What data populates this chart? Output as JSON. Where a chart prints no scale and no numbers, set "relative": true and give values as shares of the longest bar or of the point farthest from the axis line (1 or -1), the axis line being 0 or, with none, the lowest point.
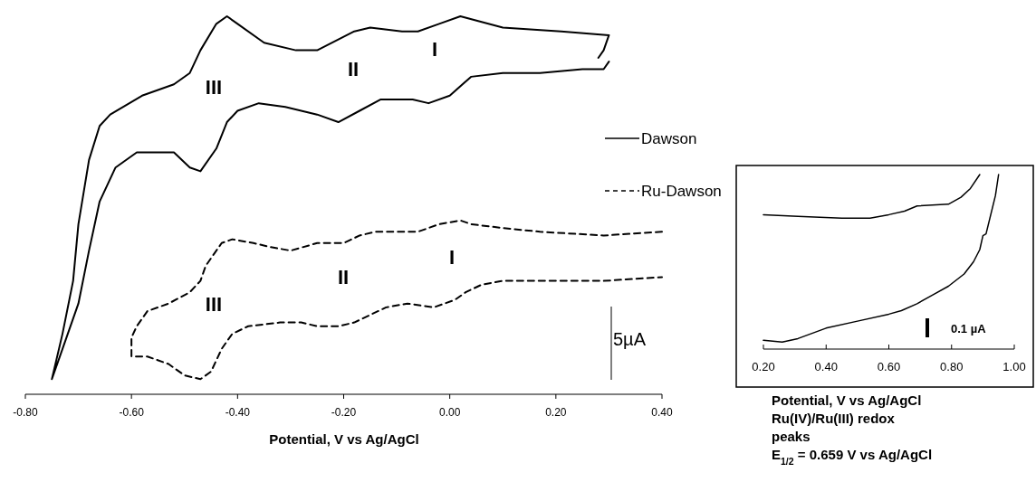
{
  "chart_data": [
    {
      "type": "line",
      "relative": true,
      "xlabel": "Potential, V vs Ag/AgCl",
      "xlim": [
        -0.8,
        0.4
      ],
      "xticks": [
        {
          "value": -0.8,
          "label": "-0.80"
        },
        {
          "value": -0.6,
          "label": "-0.60"
        },
        {
          "value": -0.4,
          "label": "-0.40"
        },
        {
          "value": -0.2,
          "label": "-0.20"
        },
        {
          "value": 0,
          "label": "0.00"
        },
        {
          "value": 0.2,
          "label": "0.20"
        },
        {
          "value": 0.4,
          "label": "0.40"
        }
      ],
      "tick_labels": "x",
      "legend": "right",
      "marker": "none",
      "series": [
        {
          "name": "Dawson",
          "color": "#000000",
          "line_style": "solid",
          "x": [
            0.28,
            0.29,
            0.3,
            0.21,
            0.1,
            0.02,
            -0.02,
            -0.06,
            -0.09,
            -0.15,
            -0.18,
            -0.25,
            -0.29,
            -0.35,
            -0.4,
            -0.42,
            -0.44,
            -0.47,
            -0.49,
            -0.52,
            -0.58,
            -0.64,
            -0.66,
            -0.68,
            -0.7,
            -0.71,
            -0.73,
            -0.75,
            -0.73,
            -0.7,
            -0.68,
            -0.66,
            -0.63,
            -0.59,
            -0.55,
            -0.52,
            -0.49,
            -0.47,
            -0.44,
            -0.42,
            -0.4,
            -0.36,
            -0.31,
            -0.25,
            -0.21,
            -0.17,
            -0.13,
            -0.07,
            -0.04,
            0.0,
            0.04,
            0.1,
            0.17,
            0.25,
            0.29,
            0.3
          ],
          "values": [
            0.89,
            0.91,
            0.95,
            0.96,
            0.97,
            1.0,
            0.98,
            0.96,
            0.96,
            0.97,
            0.96,
            0.91,
            0.91,
            0.93,
            0.98,
            1.0,
            0.98,
            0.91,
            0.85,
            0.82,
            0.79,
            0.74,
            0.71,
            0.62,
            0.45,
            0.3,
            0.16,
            0.04,
            0.12,
            0.24,
            0.38,
            0.51,
            0.6,
            0.64,
            0.64,
            0.64,
            0.6,
            0.59,
            0.65,
            0.72,
            0.75,
            0.77,
            0.76,
            0.74,
            0.72,
            0.75,
            0.78,
            0.78,
            0.77,
            0.79,
            0.84,
            0.85,
            0.85,
            0.86,
            0.86,
            0.88
          ]
        },
        {
          "name": "Ru-Dawson",
          "color": "#000000",
          "line_style": "dashed",
          "x": [
            0.4,
            0.29,
            0.17,
            0.1,
            0.04,
            0.02,
            -0.02,
            -0.06,
            -0.09,
            -0.14,
            -0.17,
            -0.2,
            -0.25,
            -0.3,
            -0.34,
            -0.37,
            -0.41,
            -0.43,
            -0.44,
            -0.46,
            -0.47,
            -0.49,
            -0.53,
            -0.57,
            -0.59,
            -0.6,
            -0.6,
            -0.57,
            -0.53,
            -0.5,
            -0.47,
            -0.45,
            -0.43,
            -0.41,
            -0.38,
            -0.32,
            -0.28,
            -0.25,
            -0.21,
            -0.18,
            -0.15,
            -0.12,
            -0.08,
            -0.03,
            0.01,
            0.03,
            0.06,
            0.1,
            0.17,
            0.29,
            0.4
          ],
          "values": [
            0.43,
            0.42,
            0.43,
            0.44,
            0.45,
            0.46,
            0.45,
            0.43,
            0.43,
            0.43,
            0.42,
            0.4,
            0.4,
            0.38,
            0.39,
            0.4,
            0.41,
            0.4,
            0.38,
            0.34,
            0.3,
            0.27,
            0.24,
            0.22,
            0.18,
            0.15,
            0.1,
            0.1,
            0.08,
            0.05,
            0.04,
            0.06,
            0.12,
            0.16,
            0.18,
            0.19,
            0.19,
            0.18,
            0.18,
            0.19,
            0.21,
            0.23,
            0.24,
            0.23,
            0.25,
            0.27,
            0.29,
            0.3,
            0.3,
            0.3,
            0.31
          ]
        }
      ],
      "annotations": [
        "I",
        "II",
        "III",
        "I",
        "II",
        "III",
        "5µA"
      ]
    },
    {
      "type": "line",
      "relative": true,
      "xlabel": "Potential, V vs Ag/AgCl",
      "xlim": [
        0.2,
        1.0
      ],
      "xticks": [
        {
          "value": 0.2,
          "label": "0.20"
        },
        {
          "value": 0.4,
          "label": "0.40"
        },
        {
          "value": 0.6,
          "label": "0.60"
        },
        {
          "value": 0.8,
          "label": "0.80"
        },
        {
          "value": 1.0,
          "label": "1.00"
        }
      ],
      "tick_labels": "x",
      "marker": "none",
      "series": [
        {
          "color": "#000000",
          "line_style": "solid",
          "x": [
            0.2,
            0.31,
            0.45,
            0.54,
            0.6,
            0.65,
            0.69,
            0.79,
            0.83,
            0.86,
            0.89
          ],
          "values": [
            0.77,
            0.76,
            0.75,
            0.75,
            0.77,
            0.79,
            0.82,
            0.83,
            0.87,
            0.92,
            1.0
          ]
        },
        {
          "color": "#000000",
          "line_style": "solid",
          "x": [
            0.2,
            0.26,
            0.31,
            0.4,
            0.5,
            0.6,
            0.64,
            0.69,
            0.74,
            0.79,
            0.84,
            0.87,
            0.89,
            0.9,
            0.91,
            0.94,
            0.95
          ],
          "values": [
            0.05,
            0.04,
            0.06,
            0.12,
            0.16,
            0.2,
            0.22,
            0.26,
            0.31,
            0.36,
            0.43,
            0.5,
            0.57,
            0.65,
            0.66,
            0.88,
            1.0
          ]
        }
      ],
      "annotations": [
        "0.1 µA",
        "Ru(IV)/Ru(III) redox peaks",
        "E$_{1/2}$ = 0.659 V vs Ag/AgCl"
      ]
    }
  ]
}
